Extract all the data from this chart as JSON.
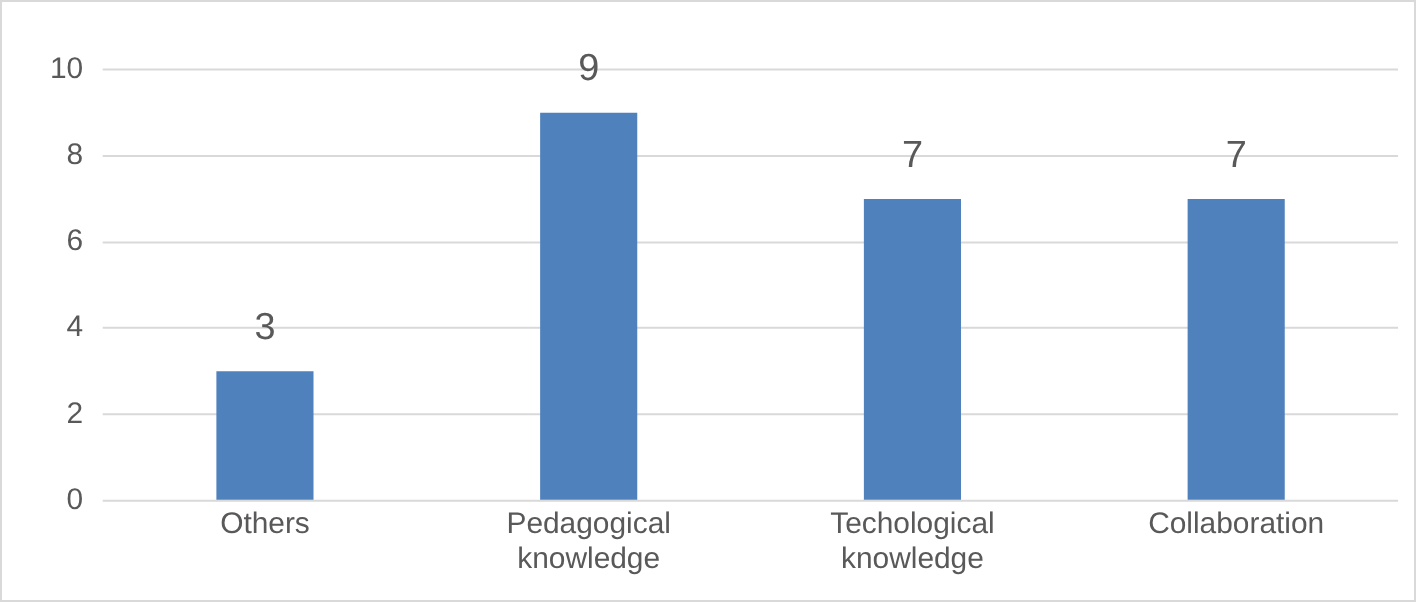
{
  "chart_data": {
    "type": "bar",
    "categories": [
      "Others",
      "Pedagogical knowledge",
      "Techological knowledge",
      "Collaboration"
    ],
    "values": [
      3,
      9,
      7,
      7
    ],
    "color": "#4f81bd",
    "ylim": [
      0,
      10
    ],
    "yticks": [
      0,
      2,
      4,
      6,
      8,
      10
    ],
    "grid": "y",
    "data_labels": true
  }
}
